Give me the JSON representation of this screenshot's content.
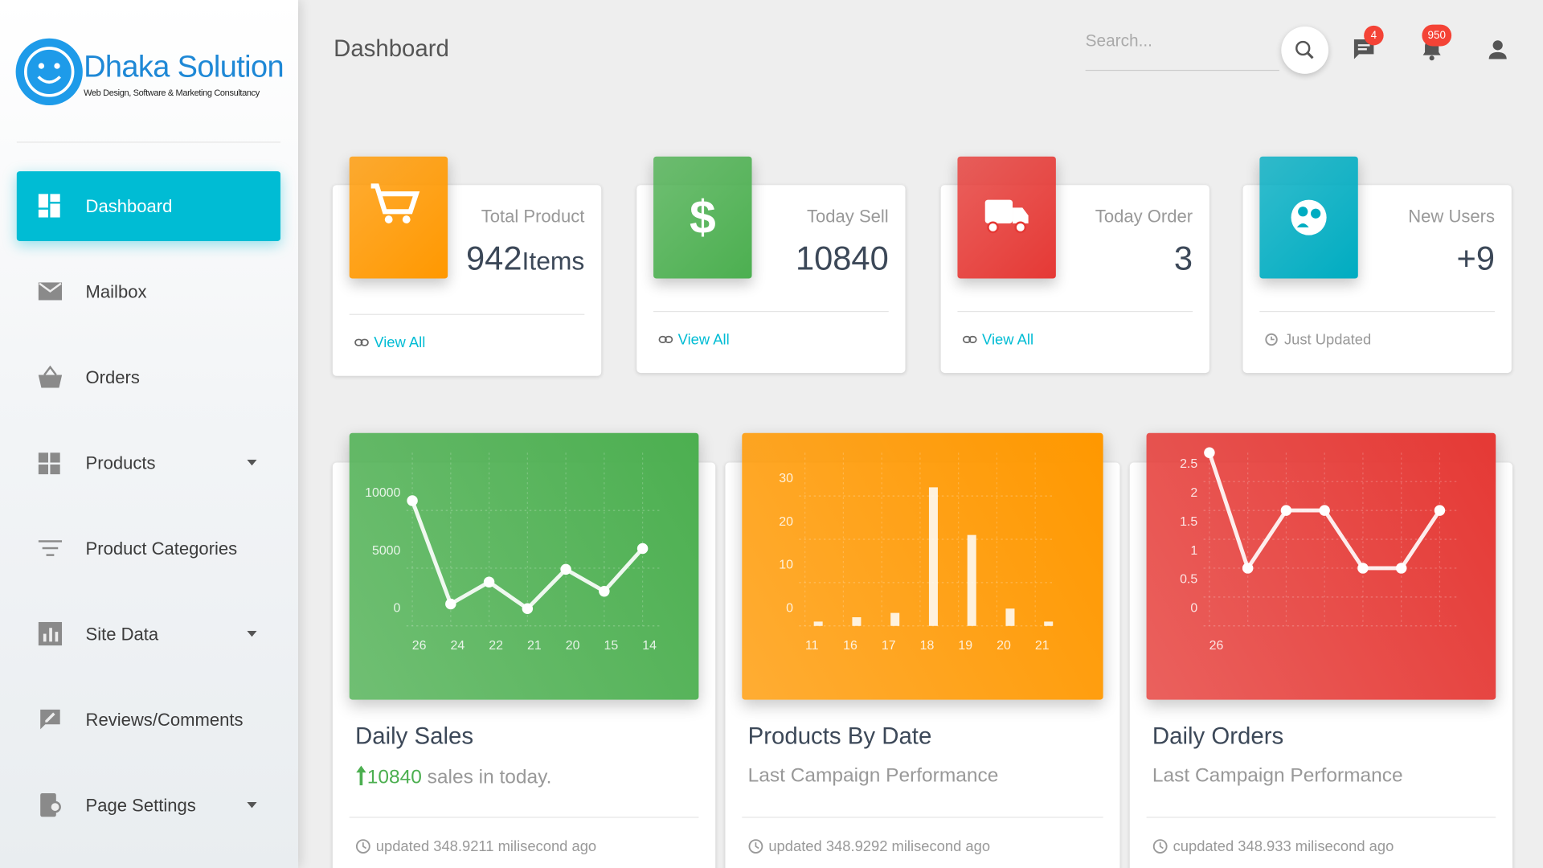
{
  "sidebar": {
    "brand": "Dhaka Solution",
    "tagline": "Web Design, Software & Marketing Consultancy",
    "menu": [
      "Dashboard",
      "Mailbox",
      "Orders",
      "Products",
      "Product Categories",
      "Site Data",
      "Reviews/Comments",
      "Page Settings"
    ]
  },
  "header": {
    "title": "Dashboard",
    "search_placeholder": "Search...",
    "chat_badge": 4,
    "notification_badge": 950
  },
  "stats": [
    {
      "label": "Total Product",
      "value": 942,
      "unit": "Items",
      "link": "View All",
      "color": "#ff9800"
    },
    {
      "label": "Today Sell",
      "value": 10840,
      "link": "View All",
      "color": "#4caf50"
    },
    {
      "label": "Today Order",
      "value": 3,
      "link": "View All",
      "color": "#e53935"
    },
    {
      "label": "New Users",
      "value": "+9",
      "link": "Just Updated",
      "color": "#00acc1"
    }
  ],
  "charts": [
    {
      "type": "line",
      "title": "Daily Sales",
      "highlight": 10840,
      "subtitle": "sales in today.",
      "footer": "updated 348.9211 milisecond ago",
      "color": "#4caf50",
      "categories": [
        "26",
        "24",
        "22",
        "21",
        "20",
        "15",
        "14"
      ],
      "values": [
        10840,
        1900,
        3800,
        1500,
        4900,
        3000,
        6700
      ],
      "ylim": [
        0,
        15000
      ],
      "yticks": [
        0,
        5000,
        10000
      ]
    },
    {
      "type": "bar",
      "title": "Products By Date",
      "subtitle": "Last Campaign Performance",
      "footer": "updated 348.9292 milisecond ago",
      "color": "#ff9800",
      "categories": [
        "11",
        "16",
        "17",
        "18",
        "19",
        "20",
        "21"
      ],
      "values": [
        1,
        2,
        3,
        32,
        21,
        4,
        1
      ],
      "ylim": [
        0,
        40
      ],
      "yticks": [
        0,
        10,
        20,
        30
      ]
    },
    {
      "type": "line",
      "title": "Daily Orders",
      "subtitle": "Last Campaign Performance",
      "footer": "cupdated 348.933 milisecond ago",
      "color": "#e53935",
      "categories": [
        "26",
        null,
        null,
        null,
        null,
        null,
        null
      ],
      "values": [
        3,
        1,
        2,
        2,
        1,
        1,
        2
      ],
      "ylim": [
        0,
        3
      ],
      "yticks": [
        0,
        0.5,
        1,
        1.5,
        2,
        2.5
      ]
    }
  ]
}
